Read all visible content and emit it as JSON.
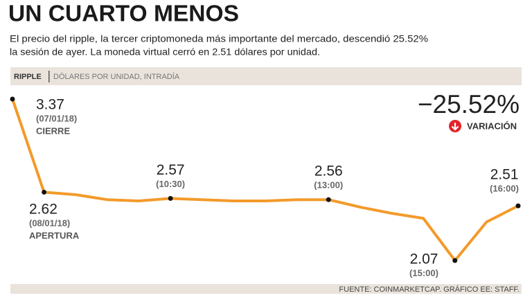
{
  "chart_data": {
    "type": "line",
    "title": "UN CUARTO MENOS",
    "subtitle": [
      "El precio del ripple, la tercer criptomoneda más importante del mercado, descendió 25.52%",
      "la sesión de ayer. La moneda virtual cerró en 2.51 dólares por unidad."
    ],
    "series_label": "RIPPLE",
    "axis_label": "DÓLARES POR UNIDAD, INTRADÍA",
    "categories": [
      "(07/01/18)",
      "(08/01/18)",
      null,
      null,
      null,
      "(10:30)",
      null,
      null,
      null,
      null,
      "(13:00)",
      null,
      null,
      null,
      "(15:00)",
      null,
      "(16:00)"
    ],
    "category_notes": [
      "CIERRE",
      "APERTURA",
      null,
      null,
      null,
      null,
      null,
      null,
      null,
      null,
      null,
      null,
      null,
      null,
      null,
      null,
      null
    ],
    "values": [
      3.37,
      2.62,
      2.6,
      2.56,
      2.55,
      2.57,
      2.56,
      2.55,
      2.55,
      2.56,
      2.56,
      2.5,
      2.45,
      2.41,
      2.07,
      2.38,
      2.51
    ],
    "color": "#f39a2a",
    "change": {
      "value": -25.52,
      "label": "−25.52%",
      "caption": "VARIACIÓN"
    },
    "source": "FUENTE: COINMARKETCAP. GRÁFICO EE: STAFF."
  }
}
